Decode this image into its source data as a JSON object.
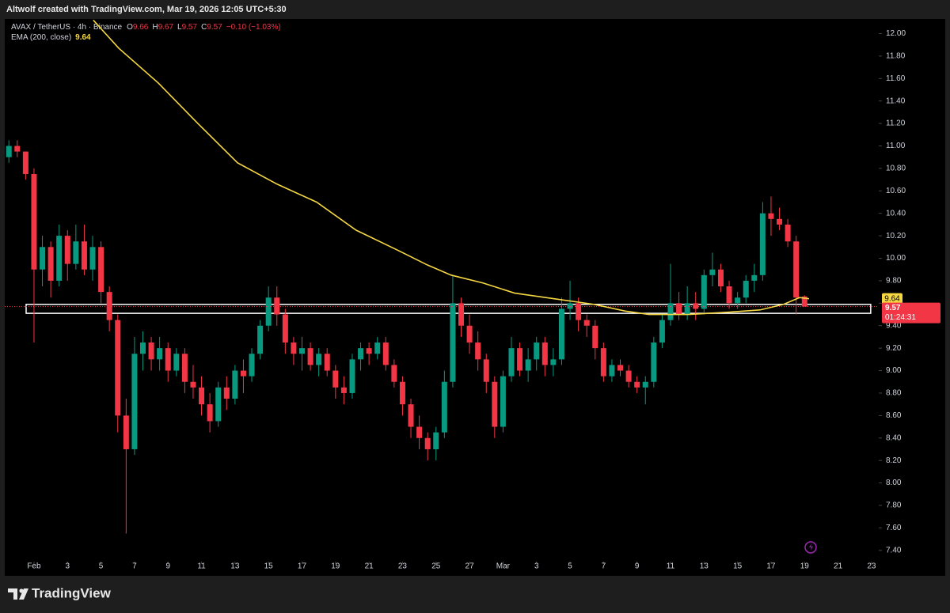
{
  "chart_data": {
    "type": "candlestick",
    "title": "Altwolf created with TradingView.com, Mar 19, 2026 12:05 UTC+5:30",
    "symbol": "AVAX / TetherUS · 4h · Binance",
    "ohlc_letters": [
      "O",
      "H",
      "L",
      "C"
    ],
    "change": "−0.10 (−1.03%)",
    "up_color": "#089981",
    "down_color": "#f23645",
    "x": [
      -1.5,
      -1,
      -0.5,
      0,
      0.5,
      1,
      1.5,
      2,
      2.5,
      3,
      3.5,
      4,
      4.5,
      5,
      5.5,
      6,
      6.5,
      7,
      7.5,
      8,
      8.5,
      9,
      9.5,
      10,
      10.5,
      11,
      11.5,
      12,
      12.5,
      13,
      13.5,
      14,
      14.5,
      15,
      15.5,
      16,
      16.5,
      17,
      17.5,
      18,
      18.5,
      19,
      19.5,
      20,
      20.5,
      21,
      21.5,
      22,
      22.5,
      23,
      23.5,
      24,
      24.5,
      25,
      25.5,
      26,
      26.5,
      27,
      27.5,
      28,
      28.5,
      29,
      29.5,
      30,
      30.5,
      31,
      31.5,
      32,
      32.5,
      33,
      33.5,
      34,
      34.5,
      35,
      35.5,
      36,
      36.5,
      37,
      37.5,
      38,
      38.5,
      39,
      39.5,
      40,
      40.5,
      41,
      41.5,
      42,
      42.5,
      43,
      43.5,
      44,
      44.5,
      45,
      45.5,
      46
    ],
    "ohlc": [
      [
        10.9,
        11.05,
        10.85,
        11.0
      ],
      [
        11.0,
        11.05,
        10.9,
        10.95
      ],
      [
        10.95,
        10.95,
        10.7,
        10.75
      ],
      [
        10.75,
        10.8,
        9.25,
        9.9
      ],
      [
        9.9,
        10.2,
        9.75,
        10.1
      ],
      [
        10.1,
        10.15,
        9.65,
        9.8
      ],
      [
        9.8,
        10.3,
        9.75,
        10.2
      ],
      [
        10.2,
        10.25,
        9.8,
        9.95
      ],
      [
        9.95,
        10.3,
        9.9,
        10.15
      ],
      [
        10.15,
        10.3,
        9.85,
        9.9
      ],
      [
        9.9,
        10.2,
        9.8,
        10.1
      ],
      [
        10.1,
        10.15,
        9.6,
        9.7
      ],
      [
        9.7,
        9.75,
        9.35,
        9.45
      ],
      [
        9.45,
        9.5,
        8.45,
        8.6
      ],
      [
        8.6,
        8.75,
        7.55,
        8.3
      ],
      [
        8.3,
        9.3,
        8.25,
        9.15
      ],
      [
        9.15,
        9.35,
        9.0,
        9.25
      ],
      [
        9.25,
        9.3,
        9.0,
        9.1
      ],
      [
        9.1,
        9.3,
        9.0,
        9.2
      ],
      [
        9.2,
        9.25,
        8.9,
        9.0
      ],
      [
        9.0,
        9.2,
        8.95,
        9.15
      ],
      [
        9.15,
        9.2,
        8.8,
        8.9
      ],
      [
        8.9,
        9.05,
        8.75,
        8.85
      ],
      [
        8.85,
        8.95,
        8.6,
        8.7
      ],
      [
        8.7,
        8.8,
        8.45,
        8.55
      ],
      [
        8.55,
        8.9,
        8.5,
        8.85
      ],
      [
        8.85,
        8.95,
        8.65,
        8.75
      ],
      [
        8.75,
        9.05,
        8.7,
        9.0
      ],
      [
        9.0,
        9.1,
        8.8,
        8.95
      ],
      [
        8.95,
        9.2,
        8.9,
        9.15
      ],
      [
        9.15,
        9.45,
        9.1,
        9.4
      ],
      [
        9.4,
        9.75,
        9.35,
        9.65
      ],
      [
        9.65,
        9.75,
        9.4,
        9.5
      ],
      [
        9.5,
        9.55,
        9.15,
        9.25
      ],
      [
        9.25,
        9.3,
        9.05,
        9.15
      ],
      [
        9.15,
        9.3,
        9.0,
        9.2
      ],
      [
        9.2,
        9.25,
        9.0,
        9.05
      ],
      [
        9.05,
        9.2,
        8.95,
        9.15
      ],
      [
        9.15,
        9.2,
        8.95,
        9.0
      ],
      [
        9.0,
        9.05,
        8.75,
        8.85
      ],
      [
        8.85,
        8.95,
        8.7,
        8.8
      ],
      [
        8.8,
        9.15,
        8.75,
        9.1
      ],
      [
        9.1,
        9.25,
        9.0,
        9.2
      ],
      [
        9.2,
        9.25,
        9.05,
        9.15
      ],
      [
        9.15,
        9.3,
        9.1,
        9.25
      ],
      [
        9.25,
        9.3,
        9.0,
        9.05
      ],
      [
        9.05,
        9.1,
        8.85,
        8.9
      ],
      [
        8.9,
        8.95,
        8.6,
        8.7
      ],
      [
        8.7,
        8.75,
        8.4,
        8.5
      ],
      [
        8.5,
        8.6,
        8.3,
        8.4
      ],
      [
        8.4,
        8.45,
        8.2,
        8.3
      ],
      [
        8.3,
        8.5,
        8.2,
        8.45
      ],
      [
        8.45,
        9.0,
        8.4,
        8.9
      ],
      [
        8.9,
        9.85,
        8.85,
        9.6
      ],
      [
        9.6,
        9.65,
        9.3,
        9.4
      ],
      [
        9.4,
        9.5,
        9.15,
        9.25
      ],
      [
        9.25,
        9.35,
        9.0,
        9.1
      ],
      [
        9.1,
        9.15,
        8.8,
        8.9
      ],
      [
        8.9,
        8.95,
        8.4,
        8.5
      ],
      [
        8.5,
        9.0,
        8.45,
        8.95
      ],
      [
        8.95,
        9.3,
        8.9,
        9.2
      ],
      [
        9.2,
        9.25,
        8.95,
        9.0
      ],
      [
        9.0,
        9.2,
        8.9,
        9.1
      ],
      [
        9.1,
        9.3,
        9.0,
        9.25
      ],
      [
        9.25,
        9.3,
        8.95,
        9.05
      ],
      [
        9.05,
        9.2,
        8.95,
        9.1
      ],
      [
        9.1,
        9.65,
        9.05,
        9.55
      ],
      [
        9.55,
        9.8,
        9.45,
        9.6
      ],
      [
        9.6,
        9.65,
        9.35,
        9.45
      ],
      [
        9.45,
        9.5,
        9.3,
        9.4
      ],
      [
        9.4,
        9.45,
        9.1,
        9.2
      ],
      [
        9.2,
        9.25,
        8.9,
        8.95
      ],
      [
        8.95,
        9.1,
        8.9,
        9.05
      ],
      [
        9.05,
        9.1,
        8.95,
        9.0
      ],
      [
        9.0,
        9.05,
        8.85,
        8.9
      ],
      [
        8.9,
        8.95,
        8.8,
        8.85
      ],
      [
        8.85,
        8.95,
        8.7,
        8.9
      ],
      [
        8.9,
        9.3,
        8.85,
        9.25
      ],
      [
        9.25,
        9.5,
        9.2,
        9.45
      ],
      [
        9.45,
        9.95,
        9.4,
        9.6
      ],
      [
        9.6,
        9.7,
        9.45,
        9.5
      ],
      [
        9.5,
        9.75,
        9.45,
        9.6
      ],
      [
        9.6,
        9.7,
        9.45,
        9.55
      ],
      [
        9.55,
        9.9,
        9.5,
        9.85
      ],
      [
        9.85,
        10.05,
        9.75,
        9.9
      ],
      [
        9.9,
        9.95,
        9.7,
        9.75
      ],
      [
        9.75,
        9.8,
        9.55,
        9.6
      ],
      [
        9.6,
        9.7,
        9.55,
        9.65
      ],
      [
        9.65,
        9.85,
        9.6,
        9.8
      ],
      [
        9.8,
        9.95,
        9.7,
        9.85
      ],
      [
        9.85,
        10.5,
        9.8,
        10.4
      ],
      [
        10.4,
        10.55,
        10.2,
        10.35
      ],
      [
        10.35,
        10.45,
        10.25,
        10.3
      ],
      [
        10.3,
        10.35,
        10.1,
        10.15
      ],
      [
        10.15,
        10.2,
        9.5,
        9.65
      ],
      [
        9.66,
        9.67,
        9.57,
        9.57
      ]
    ],
    "ema": {
      "name": "EMA (200, close)",
      "color": "#f5d742",
      "last": 9.64,
      "x": [
        3.54,
        5.06,
        7.42,
        9.78,
        12.15,
        14.51,
        16.87,
        19.23,
        21.6,
        23.49,
        24.9,
        26.8,
        28.69,
        31.05,
        33.41,
        35.3,
        36.72,
        39.08,
        41.45,
        43.34,
        44.75,
        45.7,
        46.27
      ],
      "values": [
        12.12,
        11.87,
        11.56,
        11.2,
        10.85,
        10.66,
        10.5,
        10.25,
        10.08,
        9.94,
        9.85,
        9.78,
        9.69,
        9.64,
        9.59,
        9.53,
        9.5,
        9.5,
        9.52,
        9.54,
        9.59,
        9.65,
        9.64
      ]
    },
    "zone": {
      "xlim": [
        -0.47,
        49.95
      ],
      "ylim": [
        9.51,
        9.59
      ]
    },
    "countdown": "01:24:31",
    "xlim": [
      -2.03,
      50.43
    ],
    "ylim": [
      7.3,
      12.13
    ],
    "xticks": [
      {
        "value": 0,
        "label": "Feb"
      },
      {
        "value": 2,
        "label": "3"
      },
      {
        "value": 4,
        "label": "5"
      },
      {
        "value": 6,
        "label": "7"
      },
      {
        "value": 8,
        "label": "9"
      },
      {
        "value": 10,
        "label": "11"
      },
      {
        "value": 12,
        "label": "13"
      },
      {
        "value": 14,
        "label": "15"
      },
      {
        "value": 16,
        "label": "17"
      },
      {
        "value": 18,
        "label": "19"
      },
      {
        "value": 20,
        "label": "21"
      },
      {
        "value": 22,
        "label": "23"
      },
      {
        "value": 24,
        "label": "25"
      },
      {
        "value": 26,
        "label": "27"
      },
      {
        "value": 28,
        "label": "Mar"
      },
      {
        "value": 30,
        "label": "3"
      },
      {
        "value": 32,
        "label": "5"
      },
      {
        "value": 34,
        "label": "7"
      },
      {
        "value": 36,
        "label": "9"
      },
      {
        "value": 38,
        "label": "11"
      },
      {
        "value": 40,
        "label": "13"
      },
      {
        "value": 42,
        "label": "15"
      },
      {
        "value": 44,
        "label": "17"
      },
      {
        "value": 46,
        "label": "19"
      },
      {
        "value": 48,
        "label": "21"
      },
      {
        "value": 50,
        "label": "23"
      }
    ],
    "yticks": [
      {
        "value": 7.4,
        "label": "7.40"
      },
      {
        "value": 7.6,
        "label": "7.60"
      },
      {
        "value": 7.8,
        "label": "7.80"
      },
      {
        "value": 8,
        "label": "8.00"
      },
      {
        "value": 8.2,
        "label": "8.20"
      },
      {
        "value": 8.4,
        "label": "8.40"
      },
      {
        "value": 8.6,
        "label": "8.60"
      },
      {
        "value": 8.8,
        "label": "8.80"
      },
      {
        "value": 9,
        "label": "9.00"
      },
      {
        "value": 9.2,
        "label": "9.20"
      },
      {
        "value": 9.4,
        "label": "9.40"
      },
      {
        "value": 9.6,
        "label": "9.60"
      },
      {
        "value": 9.8,
        "label": "9.80"
      },
      {
        "value": 10,
        "label": "10.00"
      },
      {
        "value": 10.2,
        "label": "10.20"
      },
      {
        "value": 10.4,
        "label": "10.40"
      },
      {
        "value": 10.6,
        "label": "10.60"
      },
      {
        "value": 10.8,
        "label": "10.80"
      },
      {
        "value": 11,
        "label": "11.00"
      },
      {
        "value": 11.2,
        "label": "11.20"
      },
      {
        "value": 11.4,
        "label": "11.40"
      },
      {
        "value": 11.6,
        "label": "11.60"
      },
      {
        "value": 11.8,
        "label": "11.80"
      },
      {
        "value": 12,
        "label": "12.00"
      }
    ],
    "grid": false,
    "brand": "TradingView"
  }
}
